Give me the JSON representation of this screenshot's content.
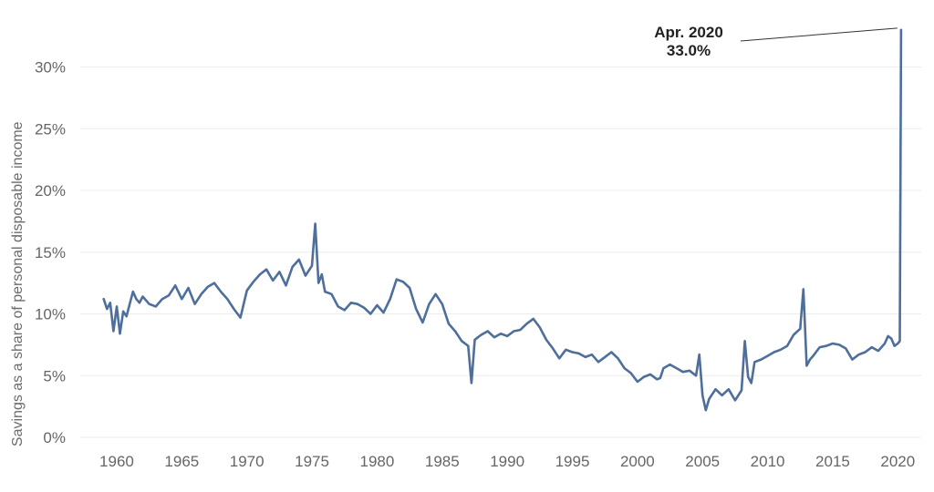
{
  "chart_data": {
    "type": "line",
    "title": "",
    "xlabel": "",
    "ylabel": "Savings as a share of personal disposable income",
    "x_ticks": [
      "1960",
      "1965",
      "1970",
      "1975",
      "1980",
      "1985",
      "1990",
      "1995",
      "2000",
      "2005",
      "2010",
      "2015",
      "2020"
    ],
    "y_ticks": [
      "0%",
      "5%",
      "10%",
      "15%",
      "20%",
      "25%",
      "30%"
    ],
    "xlim": [
      1957.2,
      2021.8
    ],
    "ylim": [
      0,
      33
    ],
    "grid": true,
    "line_color": "#4e6e9c",
    "annotation": {
      "line1": "Apr. 2020",
      "line2": "33.0%",
      "x": 2020.25,
      "y": 33.0
    },
    "series": [
      {
        "x": [
          1959.0,
          1959.25,
          1959.5,
          1959.75,
          1960.0,
          1960.25,
          1960.5,
          1960.75,
          1961.0,
          1961.25,
          1961.5,
          1961.75,
          1962.0,
          1962.5,
          1963.0,
          1963.5,
          1964.0,
          1964.5,
          1965.0,
          1965.5,
          1966.0,
          1966.5,
          1967.0,
          1967.5,
          1968.0,
          1968.5,
          1969.0,
          1969.5,
          1970.0,
          1970.5,
          1971.0,
          1971.5,
          1972.0,
          1972.5,
          1973.0,
          1973.5,
          1974.0,
          1974.5,
          1975.0,
          1975.25,
          1975.5,
          1975.75,
          1976.0,
          1976.5,
          1977.0,
          1977.5,
          1978.0,
          1978.5,
          1979.0,
          1979.5,
          1980.0,
          1980.5,
          1981.0,
          1981.5,
          1982.0,
          1982.5,
          1983.0,
          1983.5,
          1984.0,
          1984.5,
          1985.0,
          1985.5,
          1986.0,
          1986.5,
          1987.0,
          1987.25,
          1987.5,
          1987.75,
          1988.0,
          1988.5,
          1989.0,
          1989.5,
          1990.0,
          1990.5,
          1991.0,
          1991.5,
          1992.0,
          1992.5,
          1993.0,
          1993.5,
          1994.0,
          1994.5,
          1995.0,
          1995.5,
          1996.0,
          1996.5,
          1997.0,
          1997.5,
          1998.0,
          1998.5,
          1999.0,
          1999.5,
          2000.0,
          2000.5,
          2001.0,
          2001.5,
          2001.75,
          2002.0,
          2002.5,
          2003.0,
          2003.5,
          2004.0,
          2004.5,
          2004.75,
          2005.0,
          2005.25,
          2005.5,
          2006.0,
          2006.5,
          2007.0,
          2007.5,
          2008.0,
          2008.25,
          2008.5,
          2008.75,
          2009.0,
          2009.5,
          2010.0,
          2010.5,
          2011.0,
          2011.5,
          2012.0,
          2012.5,
          2012.75,
          2013.0,
          2013.25,
          2013.5,
          2014.0,
          2014.5,
          2015.0,
          2015.5,
          2016.0,
          2016.5,
          2017.0,
          2017.5,
          2018.0,
          2018.5,
          2019.0,
          2019.25,
          2019.5,
          2019.75,
          2020.0,
          2020.15,
          2020.25
        ],
        "y": [
          11.2,
          10.4,
          10.9,
          8.6,
          10.6,
          8.4,
          10.2,
          9.8,
          10.8,
          11.8,
          11.2,
          10.9,
          11.4,
          10.8,
          10.6,
          11.2,
          11.5,
          12.3,
          11.2,
          12.1,
          10.8,
          11.6,
          12.2,
          12.5,
          11.8,
          11.2,
          10.4,
          9.7,
          11.9,
          12.6,
          13.2,
          13.6,
          12.7,
          13.4,
          12.3,
          13.8,
          14.4,
          13.1,
          13.9,
          17.3,
          12.5,
          13.2,
          11.8,
          11.6,
          10.6,
          10.3,
          10.9,
          10.8,
          10.5,
          10.0,
          10.7,
          10.1,
          11.2,
          12.8,
          12.6,
          12.1,
          10.4,
          9.3,
          10.8,
          11.6,
          10.8,
          9.2,
          8.6,
          7.8,
          7.4,
          4.4,
          7.9,
          8.1,
          8.3,
          8.6,
          8.1,
          8.4,
          8.2,
          8.6,
          8.7,
          9.2,
          9.6,
          8.9,
          7.9,
          7.2,
          6.4,
          7.1,
          6.9,
          6.8,
          6.5,
          6.7,
          6.1,
          6.5,
          6.9,
          6.4,
          5.6,
          5.2,
          4.5,
          4.9,
          5.1,
          4.7,
          4.8,
          5.6,
          5.9,
          5.6,
          5.3,
          5.4,
          5.0,
          6.7,
          3.4,
          2.2,
          3.1,
          3.9,
          3.4,
          3.9,
          3.0,
          3.8,
          7.8,
          4.9,
          4.4,
          6.1,
          6.3,
          6.6,
          6.9,
          7.1,
          7.4,
          8.3,
          8.8,
          12.0,
          5.8,
          6.3,
          6.6,
          7.3,
          7.4,
          7.6,
          7.5,
          7.2,
          6.3,
          6.7,
          6.9,
          7.3,
          7.0,
          7.6,
          8.2,
          8.0,
          7.4,
          7.6,
          7.8,
          33.0
        ]
      }
    ]
  }
}
